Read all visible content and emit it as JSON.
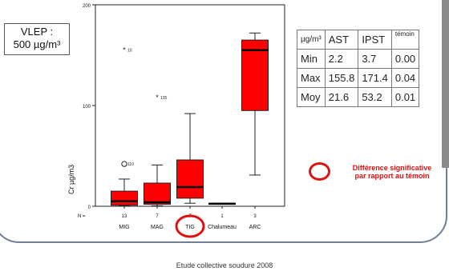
{
  "vlep": {
    "line1": "VLEP :",
    "line2": "500 µg/m³"
  },
  "chart_data": {
    "type": "boxplot",
    "ylabel": "Cr µg/m3",
    "ylim": [
      0,
      200
    ],
    "yticks": [
      0,
      100,
      200
    ],
    "n_label": "N =",
    "categories": [
      "MIG",
      "MAG",
      "TIG",
      "Chalumeau",
      "ARC"
    ],
    "n": [
      "13",
      "7",
      "7",
      "1",
      "3"
    ],
    "boxes": [
      {
        "whisker_low": 0.5,
        "q1": 1,
        "median": 5,
        "q3": 15,
        "whisker_high": 27
      },
      {
        "whisker_low": 0.5,
        "q1": 2,
        "median": 4,
        "q3": 23,
        "whisker_high": 41
      },
      {
        "whisker_low": 3,
        "q1": 8,
        "median": 19,
        "q3": 46,
        "whisker_high": 92
      },
      {
        "whisker_low": 2,
        "q1": 2,
        "median": 2.5,
        "q3": 3,
        "whisker_high": 3
      },
      {
        "whisker_low": 31,
        "q1": 95,
        "median": 155,
        "q3": 165,
        "whisker_high": 172
      }
    ],
    "outliers": [
      {
        "category": "MIG",
        "y": 42,
        "symbol": "circle",
        "label": "110"
      },
      {
        "category": "MIG",
        "y": 155,
        "symbol": "star",
        "label": "10"
      },
      {
        "category": "MAG",
        "y": 108,
        "symbol": "star",
        "label": "135"
      }
    ],
    "highlighted_category": "TIG",
    "box_color": "#ff0000"
  },
  "stats_table": {
    "header": [
      "µg/m³",
      "AST",
      "IPST",
      "témoin"
    ],
    "rows": [
      [
        "Min",
        "2.2",
        "3.7",
        "0.00"
      ],
      [
        "Max",
        "155.8",
        "171.4",
        "0.04"
      ],
      [
        "Moy",
        "21.6",
        "53.2",
        "0.01"
      ]
    ]
  },
  "annotation": {
    "line1": "Différence significative",
    "line2": "par rapport au témoin",
    "color": "#e01010"
  },
  "footer": "Etude collective soudure 2008"
}
